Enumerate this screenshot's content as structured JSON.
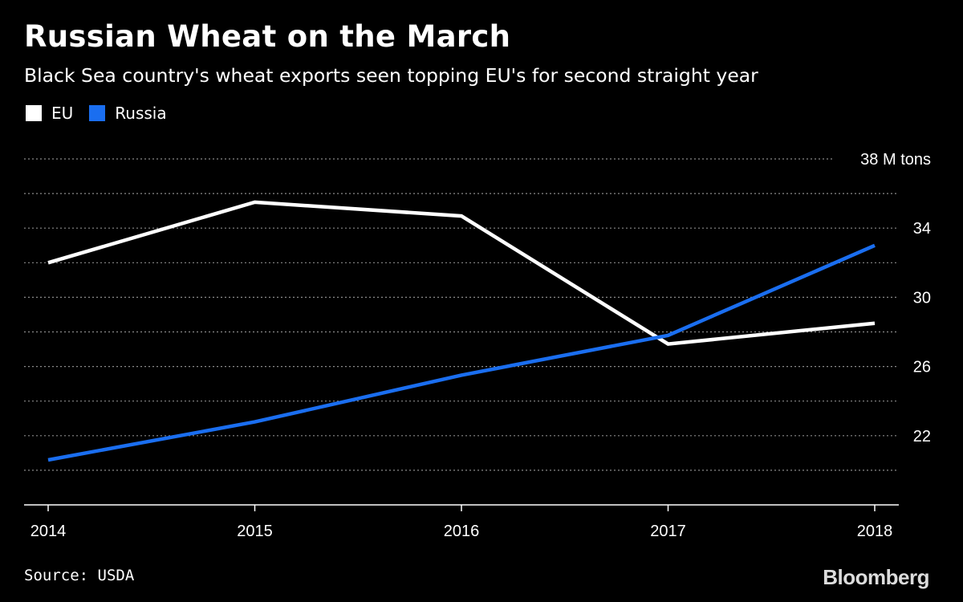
{
  "header": {
    "title": "Russian Wheat on the March",
    "subtitle": "Black Sea country's wheat exports seen topping EU's for second straight year"
  },
  "legend": {
    "items": [
      {
        "label": "EU",
        "color": "#ffffff"
      },
      {
        "label": "Russia",
        "color": "#1a6ef0"
      }
    ]
  },
  "footer": {
    "source": "Source: USDA",
    "brand": "Bloomberg"
  },
  "chart_data": {
    "type": "line",
    "x": [
      2014,
      2015,
      2016,
      2017,
      2018
    ],
    "x_tick_labels": [
      "2014",
      "2015",
      "2016",
      "2017",
      "2018"
    ],
    "series": [
      {
        "name": "EU",
        "color": "#ffffff",
        "values": [
          32.0,
          35.5,
          34.7,
          27.3,
          28.5
        ]
      },
      {
        "name": "Russia",
        "color": "#1a6ef0",
        "values": [
          20.6,
          22.8,
          25.5,
          27.8,
          33.0
        ]
      }
    ],
    "ylim": [
      18,
      38
    ],
    "y_gridlines": [
      20,
      22,
      24,
      26,
      28,
      30,
      32,
      34,
      36,
      38
    ],
    "y_ticks": [
      {
        "value": 22,
        "label": "22"
      },
      {
        "value": 26,
        "label": "26"
      },
      {
        "value": 30,
        "label": "30"
      },
      {
        "value": 34,
        "label": "34"
      },
      {
        "value": 38,
        "label": "38 M tons"
      }
    ],
    "y_axis_side": "right",
    "grid": true,
    "legend_position": "top-left",
    "title": "Russian Wheat on the March",
    "subtitle": "Black Sea country's wheat exports seen topping EU's for second straight year",
    "xlabel": "",
    "ylabel": ""
  }
}
